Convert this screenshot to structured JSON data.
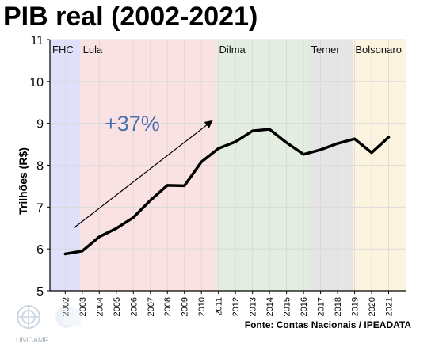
{
  "title": "PIB real (2002-2021)",
  "source": "Fonte: Contas Nacionais / IPEADATA",
  "logo_text": "UNICAMP",
  "chart_data": {
    "type": "line",
    "ylabel": "Trilhões (R$)",
    "xlabel": "",
    "ylim": [
      5,
      11
    ],
    "yticks": [
      5,
      6,
      7,
      8,
      9,
      10,
      11
    ],
    "xlim": [
      2001.1,
      2022.0
    ],
    "grid": true,
    "x": [
      2002,
      2003,
      2004,
      2005,
      2006,
      2007,
      2008,
      2009,
      2010,
      2011,
      2012,
      2013,
      2014,
      2015,
      2016,
      2017,
      2018,
      2019,
      2020,
      2021
    ],
    "series": [
      {
        "name": "",
        "values": [
          5.88,
          5.95,
          6.29,
          6.49,
          6.75,
          7.16,
          7.52,
          7.51,
          8.08,
          8.4,
          8.56,
          8.82,
          8.86,
          8.54,
          8.26,
          8.37,
          8.52,
          8.63,
          8.3,
          8.67
        ],
        "color": "#000000"
      }
    ],
    "periods": [
      {
        "label": "FHC",
        "start": 2001.1,
        "end": 2002.9,
        "color": "#e0e0fb"
      },
      {
        "label": "Lula",
        "start": 2002.9,
        "end": 2010.9,
        "color": "#fbe2e2"
      },
      {
        "label": "Dilma",
        "start": 2010.9,
        "end": 2016.3,
        "color": "#e3ede0"
      },
      {
        "label": "Temer",
        "start": 2016.3,
        "end": 2018.9,
        "color": "#e5e5e5"
      },
      {
        "label": "Bolsonaro",
        "start": 2018.9,
        "end": 2022.0,
        "color": "#fdf4e0"
      }
    ],
    "annotation": {
      "text": "+37%",
      "color": "#4a72b0",
      "arrow_from": [
        2002.5,
        6.5
      ],
      "arrow_to": [
        2010.6,
        9.05
      ]
    }
  }
}
